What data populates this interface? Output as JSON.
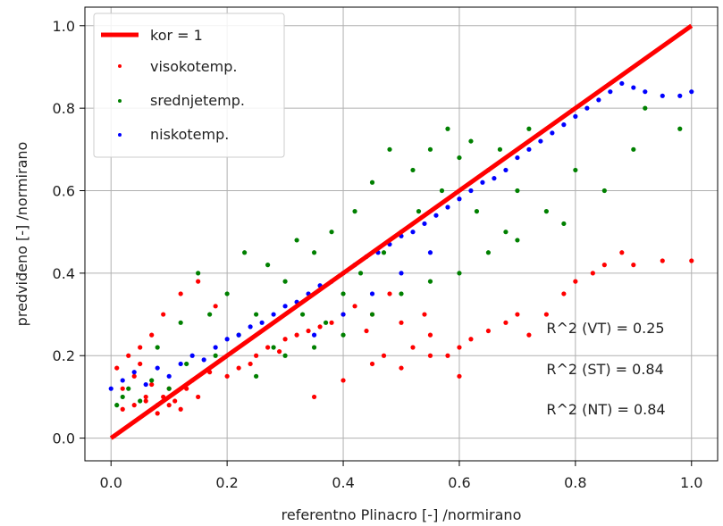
{
  "chart_data": {
    "type": "scatter",
    "xlabel": "referentno Plinacro [-] /normirano",
    "ylabel": "predviđeno [-] /normirano",
    "xlim": [
      -0.045,
      1.045
    ],
    "ylim": [
      -0.055,
      1.045
    ],
    "x_ticks": [
      "0.0",
      "0.2",
      "0.4",
      "0.6",
      "0.8",
      "1.0"
    ],
    "y_ticks": [
      "0.0",
      "0.2",
      "0.4",
      "0.6",
      "0.8",
      "1.0"
    ],
    "grid": true,
    "legend_position": "top-left",
    "reference_line": {
      "name": "kor = 1",
      "color": "#ff0000",
      "x": [
        0,
        1
      ],
      "y": [
        0,
        1
      ]
    },
    "series": [
      {
        "name": "visokotemp.",
        "color": "#ff0000",
        "x": [
          0.01,
          0.02,
          0.03,
          0.04,
          0.05,
          0.06,
          0.07,
          0.08,
          0.09,
          0.1,
          0.12,
          0.14,
          0.15,
          0.17,
          0.18,
          0.2,
          0.22,
          0.24,
          0.25,
          0.27,
          0.29,
          0.3,
          0.32,
          0.34,
          0.36,
          0.38,
          0.4,
          0.42,
          0.44,
          0.45,
          0.47,
          0.48,
          0.5,
          0.52,
          0.54,
          0.55,
          0.58,
          0.6,
          0.62,
          0.65,
          0.68,
          0.7,
          0.72,
          0.75,
          0.78,
          0.8,
          0.83,
          0.85,
          0.88,
          0.9,
          0.95,
          1.0,
          0.02,
          0.04,
          0.06,
          0.08,
          0.1,
          0.12,
          0.15,
          0.05,
          0.07,
          0.09,
          0.11,
          0.13,
          0.35,
          0.4,
          0.45,
          0.5,
          0.55,
          0.6
        ],
        "y": [
          0.17,
          0.12,
          0.2,
          0.15,
          0.22,
          0.1,
          0.25,
          0.08,
          0.3,
          0.12,
          0.35,
          0.14,
          0.38,
          0.16,
          0.32,
          0.15,
          0.17,
          0.18,
          0.2,
          0.22,
          0.21,
          0.24,
          0.25,
          0.26,
          0.27,
          0.28,
          0.3,
          0.32,
          0.26,
          0.3,
          0.2,
          0.35,
          0.28,
          0.22,
          0.3,
          0.25,
          0.2,
          0.22,
          0.24,
          0.26,
          0.28,
          0.3,
          0.25,
          0.3,
          0.35,
          0.38,
          0.4,
          0.42,
          0.45,
          0.42,
          0.43,
          0.43,
          0.07,
          0.08,
          0.09,
          0.06,
          0.08,
          0.07,
          0.1,
          0.18,
          0.13,
          0.1,
          0.09,
          0.12,
          0.1,
          0.14,
          0.18,
          0.17,
          0.2,
          0.15
        ]
      },
      {
        "name": "srednjetemp.",
        "color": "#008000",
        "x": [
          0.01,
          0.02,
          0.03,
          0.05,
          0.07,
          0.08,
          0.1,
          0.12,
          0.13,
          0.15,
          0.17,
          0.18,
          0.2,
          0.22,
          0.23,
          0.25,
          0.27,
          0.28,
          0.3,
          0.32,
          0.33,
          0.35,
          0.37,
          0.38,
          0.4,
          0.42,
          0.43,
          0.45,
          0.47,
          0.48,
          0.5,
          0.52,
          0.53,
          0.55,
          0.57,
          0.58,
          0.6,
          0.62,
          0.63,
          0.65,
          0.67,
          0.68,
          0.7,
          0.72,
          0.75,
          0.78,
          0.8,
          0.85,
          0.9,
          0.92,
          0.98,
          0.25,
          0.3,
          0.35,
          0.4,
          0.45,
          0.5,
          0.55,
          0.6,
          0.65,
          0.7
        ],
        "y": [
          0.08,
          0.1,
          0.12,
          0.09,
          0.14,
          0.22,
          0.12,
          0.28,
          0.18,
          0.4,
          0.3,
          0.2,
          0.35,
          0.25,
          0.45,
          0.3,
          0.42,
          0.22,
          0.38,
          0.48,
          0.3,
          0.45,
          0.28,
          0.5,
          0.35,
          0.55,
          0.4,
          0.62,
          0.45,
          0.7,
          0.5,
          0.65,
          0.55,
          0.7,
          0.6,
          0.75,
          0.68,
          0.72,
          0.55,
          0.65,
          0.7,
          0.5,
          0.6,
          0.75,
          0.55,
          0.52,
          0.65,
          0.6,
          0.7,
          0.8,
          0.75,
          0.15,
          0.2,
          0.22,
          0.25,
          0.3,
          0.35,
          0.38,
          0.4,
          0.45,
          0.48
        ]
      },
      {
        "name": "niskotemp.",
        "color": "#0000ff",
        "x": [
          0.0,
          0.02,
          0.04,
          0.06,
          0.08,
          0.1,
          0.12,
          0.14,
          0.16,
          0.18,
          0.2,
          0.22,
          0.24,
          0.26,
          0.28,
          0.3,
          0.32,
          0.34,
          0.36,
          0.38,
          0.4,
          0.42,
          0.44,
          0.46,
          0.48,
          0.5,
          0.52,
          0.54,
          0.56,
          0.58,
          0.6,
          0.62,
          0.64,
          0.66,
          0.68,
          0.7,
          0.72,
          0.74,
          0.76,
          0.78,
          0.8,
          0.82,
          0.84,
          0.86,
          0.88,
          0.9,
          0.92,
          0.95,
          0.98,
          1.0,
          0.35,
          0.4,
          0.45,
          0.5,
          0.55
        ],
        "y": [
          0.12,
          0.14,
          0.16,
          0.13,
          0.17,
          0.15,
          0.18,
          0.2,
          0.19,
          0.22,
          0.24,
          0.25,
          0.27,
          0.28,
          0.3,
          0.32,
          0.33,
          0.35,
          0.37,
          0.38,
          0.4,
          0.42,
          0.44,
          0.45,
          0.47,
          0.49,
          0.5,
          0.52,
          0.54,
          0.56,
          0.58,
          0.6,
          0.62,
          0.63,
          0.65,
          0.68,
          0.7,
          0.72,
          0.74,
          0.76,
          0.78,
          0.8,
          0.82,
          0.84,
          0.86,
          0.85,
          0.84,
          0.83,
          0.83,
          0.84,
          0.25,
          0.3,
          0.35,
          0.4,
          0.45
        ]
      }
    ],
    "annotations": [
      {
        "text": "R^2 (VT) = 0.25",
        "x": 0.75,
        "y": 0.255
      },
      {
        "text": "R^2 (ST) = 0.84",
        "x": 0.75,
        "y": 0.155
      },
      {
        "text": "R^2 (NT) = 0.84",
        "x": 0.75,
        "y": 0.058
      }
    ]
  }
}
